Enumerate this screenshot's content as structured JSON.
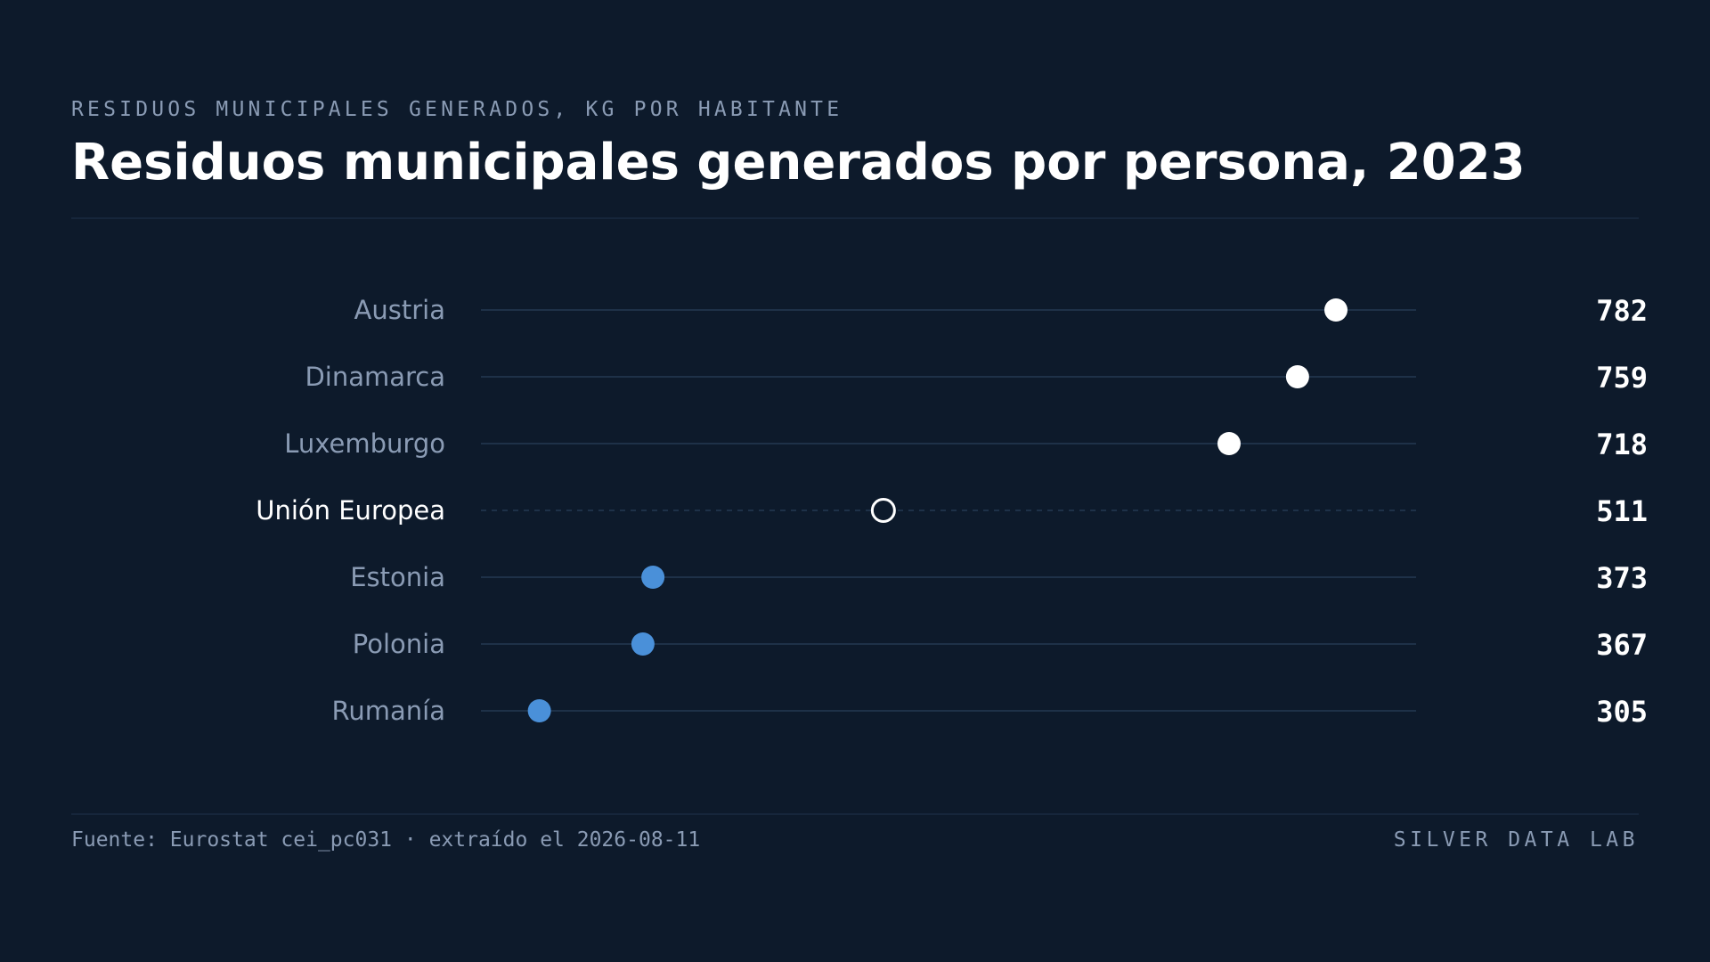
{
  "header": {
    "kicker": "RESIDUOS MUNICIPALES GENERADOS, KG POR HABITANTE",
    "title": "Residuos municipales generados por persona, 2023"
  },
  "footer": {
    "source": "Fuente: Eurostat cei_pc031 · extraído el 2026-08-11",
    "brand": "SILVER DATA LAB"
  },
  "colors": {
    "background": "#0d1a2b",
    "high": "#ffffff",
    "low": "#4a90d9",
    "reference": "#ffffff",
    "track": "#1e3148",
    "label": "#8a9bb4",
    "reference_label": "#ffffff"
  },
  "chart_data": {
    "type": "dot",
    "title": "Residuos municipales generados por persona, 2023",
    "unit": "kg por habitante",
    "xlim": [
      270,
      830
    ],
    "grid": false,
    "categories": [
      "Austria",
      "Dinamarca",
      "Luxemburgo",
      "Unión Europea",
      "Estonia",
      "Polonia",
      "Rumanía"
    ],
    "values": [
      782,
      759,
      718,
      511,
      373,
      367,
      305
    ],
    "value_labels": [
      "782",
      "759",
      "718",
      "511",
      "373",
      "367",
      "305"
    ],
    "groups": [
      "high",
      "high",
      "high",
      "reference",
      "low",
      "low",
      "low"
    ]
  }
}
